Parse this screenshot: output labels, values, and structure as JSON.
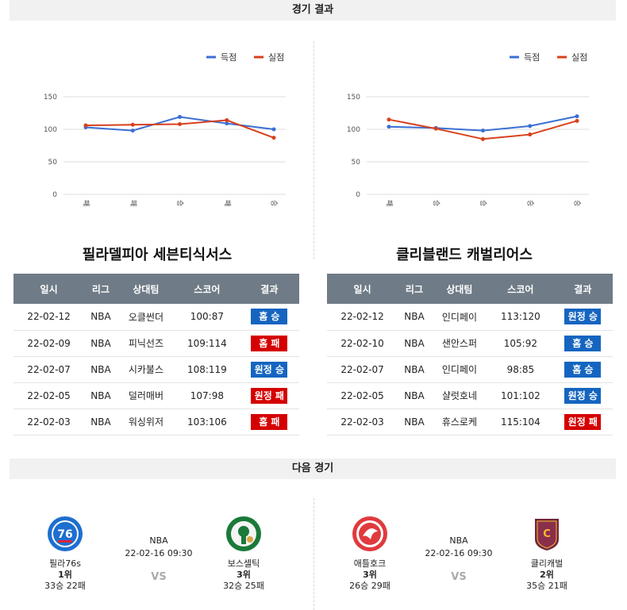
{
  "sections": {
    "results_title": "경기 결과",
    "next_title": "다음 경기"
  },
  "legend": {
    "scored": "득점",
    "allowed": "실점"
  },
  "colors": {
    "scored": "#3b6fd4",
    "allowed": "#d8401c",
    "win": "#1565c0",
    "loss": "#d50000",
    "header": "#6f7b86"
  },
  "chart_data": [
    {
      "type": "line",
      "categories": [
        "패",
        "패",
        "승",
        "패",
        "승"
      ],
      "series": [
        {
          "name": "득점",
          "values": [
            103,
            98,
            119,
            109,
            100
          ]
        },
        {
          "name": "실점",
          "values": [
            106,
            107,
            108,
            114,
            87
          ]
        }
      ],
      "yticks": [
        0,
        50,
        100,
        150
      ],
      "ylim": [
        0,
        150
      ],
      "grid": true,
      "legend_position": "top-right"
    },
    {
      "type": "line",
      "categories": [
        "패",
        "승",
        "승",
        "승",
        "승"
      ],
      "series": [
        {
          "name": "득점",
          "values": [
            104,
            102,
            98,
            105,
            120
          ]
        },
        {
          "name": "실점",
          "values": [
            115,
            101,
            85,
            92,
            113
          ]
        }
      ],
      "yticks": [
        0,
        50,
        100,
        150
      ],
      "ylim": [
        0,
        150
      ],
      "grid": true,
      "legend_position": "top-right"
    }
  ],
  "table_headers": [
    "일시",
    "리그",
    "상대팀",
    "스코어",
    "결과"
  ],
  "teams": [
    {
      "title": "필라델피아 세븐티식서스",
      "games": [
        {
          "date": "22-02-12",
          "league": "NBA",
          "opponent": "오클썬더",
          "score": "100:87",
          "result": "홈 승",
          "win": true
        },
        {
          "date": "22-02-09",
          "league": "NBA",
          "opponent": "피닉선즈",
          "score": "109:114",
          "result": "홈 패",
          "win": false
        },
        {
          "date": "22-02-07",
          "league": "NBA",
          "opponent": "시카불스",
          "score": "108:119",
          "result": "원정 승",
          "win": true
        },
        {
          "date": "22-02-05",
          "league": "NBA",
          "opponent": "덜러매버",
          "score": "107:98",
          "result": "원정 패",
          "win": false
        },
        {
          "date": "22-02-03",
          "league": "NBA",
          "opponent": "워싱위저",
          "score": "103:106",
          "result": "홈 패",
          "win": false
        }
      ]
    },
    {
      "title": "클리블랜드 캐벌리어스",
      "games": [
        {
          "date": "22-02-12",
          "league": "NBA",
          "opponent": "인디페이",
          "score": "113:120",
          "result": "원정 승",
          "win": true
        },
        {
          "date": "22-02-10",
          "league": "NBA",
          "opponent": "샌안스퍼",
          "score": "105:92",
          "result": "홈 승",
          "win": true
        },
        {
          "date": "22-02-07",
          "league": "NBA",
          "opponent": "인디페이",
          "score": "98:85",
          "result": "홈 승",
          "win": true
        },
        {
          "date": "22-02-05",
          "league": "NBA",
          "opponent": "샬럿호네",
          "score": "101:102",
          "result": "원정 승",
          "win": true
        },
        {
          "date": "22-02-03",
          "league": "NBA",
          "opponent": "휴스로케",
          "score": "115:104",
          "result": "원정 패",
          "win": false
        }
      ]
    }
  ],
  "matches": [
    {
      "league": "NBA",
      "datetime": "22-02-16 09:30",
      "vs": "VS",
      "home": {
        "name": "필라76s",
        "rank": "1위",
        "record": "33승 22패",
        "logo": "sixers-logo"
      },
      "away": {
        "name": "보스셀틱",
        "rank": "3위",
        "record": "32승 25패",
        "logo": "celtics-logo"
      }
    },
    {
      "league": "NBA",
      "datetime": "22-02-16 09:30",
      "vs": "VS",
      "home": {
        "name": "애틀호크",
        "rank": "3위",
        "record": "26승 29패",
        "logo": "hawks-logo"
      },
      "away": {
        "name": "클리캐벌",
        "rank": "2위",
        "record": "35승 21패",
        "logo": "cavaliers-logo"
      }
    }
  ]
}
